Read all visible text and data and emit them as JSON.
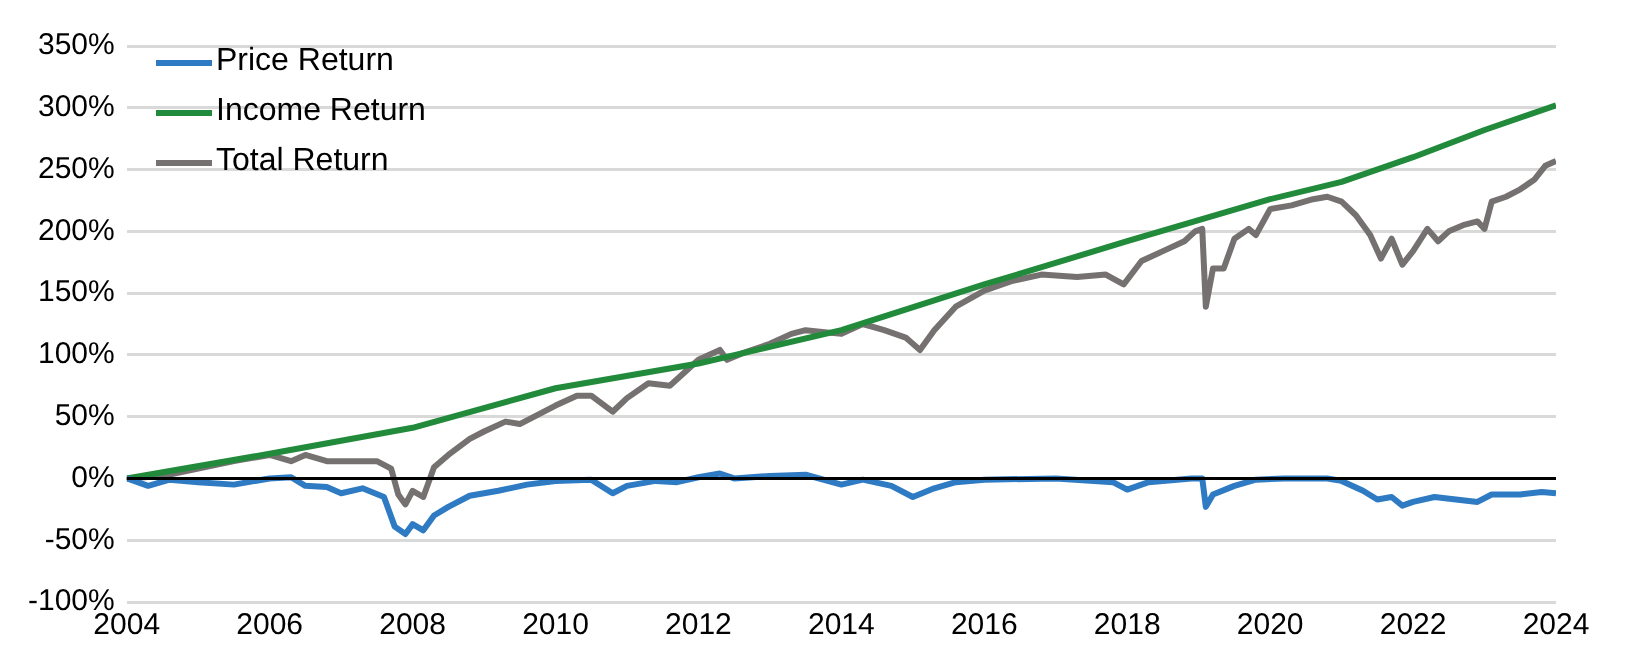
{
  "chart_data": {
    "type": "line",
    "xlim": [
      2004,
      2024
    ],
    "xticks": [
      2004,
      2006,
      2008,
      2010,
      2012,
      2014,
      2016,
      2018,
      2020,
      2022,
      2024
    ],
    "ylim": [
      -100,
      350
    ],
    "yticks": [
      {
        "value": -100,
        "label": "-100%"
      },
      {
        "value": -50,
        "label": "-50%"
      },
      {
        "value": 0,
        "label": "0%"
      },
      {
        "value": 50,
        "label": "50%"
      },
      {
        "value": 100,
        "label": "100%"
      },
      {
        "value": 150,
        "label": "150%"
      },
      {
        "value": 200,
        "label": "200%"
      },
      {
        "value": 250,
        "label": "250%"
      },
      {
        "value": 300,
        "label": "300%"
      },
      {
        "value": 350,
        "label": "350%"
      }
    ],
    "grid": "y",
    "legend": "top left",
    "marker": "none",
    "line_style": "solid",
    "ref_lines": [
      {
        "axis": "y",
        "value": 0,
        "color": "#000000"
      }
    ],
    "series": [
      {
        "name": "Price Return",
        "color": "#2e7bc4",
        "x": [
          2004.0,
          2004.3,
          2004.6,
          2005.0,
          2005.5,
          2006.0,
          2006.3,
          2006.5,
          2006.8,
          2007.0,
          2007.3,
          2007.6,
          2007.75,
          2007.9,
          2008.0,
          2008.15,
          2008.3,
          2008.5,
          2008.8,
          2009.2,
          2009.6,
          2010.0,
          2010.5,
          2010.8,
          2011.0,
          2011.4,
          2011.7,
          2012.0,
          2012.3,
          2012.5,
          2013.0,
          2013.5,
          2014.0,
          2014.3,
          2014.7,
          2015.0,
          2015.3,
          2015.6,
          2016.0,
          2017.0,
          2017.8,
          2018.0,
          2018.3,
          2018.9,
          2019.05,
          2019.1,
          2019.2,
          2019.5,
          2019.8,
          2020.2,
          2020.8,
          2021.0,
          2021.3,
          2021.5,
          2021.7,
          2021.85,
          2022.0,
          2022.3,
          2022.6,
          2022.9,
          2023.1,
          2023.5,
          2023.8,
          2024.0
        ],
        "values": [
          0,
          -6,
          -1,
          -3,
          -5,
          0,
          1,
          -6,
          -7,
          -12,
          -8,
          -15,
          -39,
          -45,
          -37,
          -42,
          -30,
          -23,
          -14,
          -10,
          -5,
          -2,
          -1,
          -12,
          -6,
          -2,
          -3,
          1,
          4,
          0,
          2,
          3,
          -5,
          -1,
          -6,
          -15,
          -8,
          -3,
          -1,
          0,
          -3,
          -9,
          -3,
          0,
          0,
          -23,
          -13,
          -6,
          -1,
          0,
          0,
          -2,
          -10,
          -17,
          -15,
          -22,
          -19,
          -15,
          -17,
          -19,
          -13,
          -13,
          -11,
          -12
        ]
      },
      {
        "name": "Income Return",
        "color": "#228b3b",
        "x": [
          2004,
          2006,
          2008,
          2010,
          2012,
          2014,
          2016,
          2018,
          2020,
          2021,
          2022,
          2023,
          2024
        ],
        "values": [
          0,
          20,
          41,
          73,
          93,
          120,
          157,
          192,
          226,
          240,
          260,
          282,
          302
        ]
      },
      {
        "name": "Total Return",
        "color": "#767171",
        "x": [
          2004.0,
          2004.5,
          2005.0,
          2005.5,
          2006.0,
          2006.3,
          2006.5,
          2006.8,
          2007.5,
          2007.7,
          2007.8,
          2007.9,
          2008.0,
          2008.15,
          2008.3,
          2008.5,
          2008.8,
          2009.0,
          2009.3,
          2009.5,
          2010.0,
          2010.3,
          2010.5,
          2010.8,
          2011.0,
          2011.3,
          2011.6,
          2012.0,
          2012.3,
          2012.4,
          2012.6,
          2013.0,
          2013.3,
          2013.5,
          2014.0,
          2014.3,
          2014.6,
          2014.9,
          2015.1,
          2015.3,
          2015.6,
          2016.0,
          2016.4,
          2016.8,
          2017.3,
          2017.7,
          2017.95,
          2018.2,
          2018.5,
          2018.8,
          2018.95,
          2019.05,
          2019.1,
          2019.2,
          2019.35,
          2019.5,
          2019.7,
          2019.8,
          2020.0,
          2020.3,
          2020.6,
          2020.8,
          2021.0,
          2021.2,
          2021.4,
          2021.55,
          2021.7,
          2021.85,
          2022.0,
          2022.2,
          2022.35,
          2022.5,
          2022.7,
          2022.9,
          2023.0,
          2023.1,
          2023.3,
          2023.5,
          2023.7,
          2023.85,
          2024.0
        ],
        "values": [
          0,
          2,
          8,
          14,
          19,
          14,
          19,
          14,
          14,
          8,
          -13,
          -21,
          -10,
          -15,
          9,
          19,
          32,
          38,
          46,
          44,
          59,
          67,
          67,
          54,
          65,
          77,
          75,
          96,
          104,
          96,
          101,
          109,
          117,
          120,
          117,
          125,
          120,
          114,
          104,
          120,
          139,
          152,
          160,
          165,
          163,
          165,
          157,
          176,
          184,
          192,
          200,
          202,
          139,
          170,
          170,
          194,
          202,
          197,
          218,
          221,
          226,
          228,
          224,
          213,
          197,
          178,
          194,
          173,
          184,
          202,
          192,
          200,
          205,
          208,
          202,
          224,
          228,
          234,
          242,
          253,
          257
        ]
      }
    ]
  }
}
